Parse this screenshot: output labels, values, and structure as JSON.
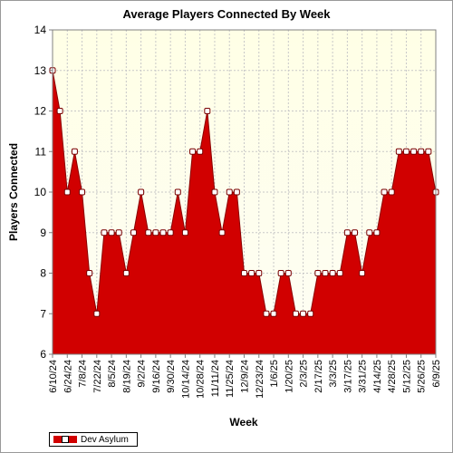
{
  "chart_data": {
    "type": "area",
    "title": "Average Players Connected By Week",
    "xlabel": "Week",
    "ylabel": "Players Connected",
    "ylim": [
      6,
      14
    ],
    "yticks": [
      6,
      7,
      8,
      9,
      10,
      11,
      12,
      13,
      14
    ],
    "x_tick_labels": [
      "6/10/24",
      "6/24/24",
      "7/8/24",
      "7/22/24",
      "8/5/24",
      "8/19/24",
      "9/2/24",
      "9/16/24",
      "9/30/24",
      "10/14/24",
      "10/28/24",
      "11/11/24",
      "11/25/24",
      "12/9/24",
      "12/23/24",
      "1/6/25",
      "1/20/25",
      "2/3/25",
      "2/17/25",
      "3/3/25",
      "3/17/25",
      "3/31/25",
      "4/14/25",
      "4/28/25",
      "5/12/25",
      "5/26/25",
      "6/9/25"
    ],
    "grid": true,
    "legend_position": "bottom-left",
    "colors": {
      "fill": "#d10000",
      "plot_bg_top": "#ffffe8",
      "plot_bg_bottom": "#fdfdf2",
      "marker_fill": "#ffffff"
    },
    "series": [
      {
        "name": "Dev Asylum",
        "values": [
          13,
          12,
          10,
          11,
          10,
          8,
          7,
          9,
          9,
          9,
          8,
          9,
          10,
          9,
          9,
          9,
          9,
          10,
          9,
          11,
          11,
          12,
          10,
          9,
          10,
          10,
          8,
          8,
          8,
          7,
          7,
          8,
          8,
          7,
          7,
          7,
          8,
          8,
          8,
          8,
          9,
          9,
          8,
          9,
          9,
          10,
          10,
          11,
          11,
          11,
          11,
          11,
          10
        ]
      }
    ]
  },
  "legend": {
    "label": "Dev Asylum"
  }
}
